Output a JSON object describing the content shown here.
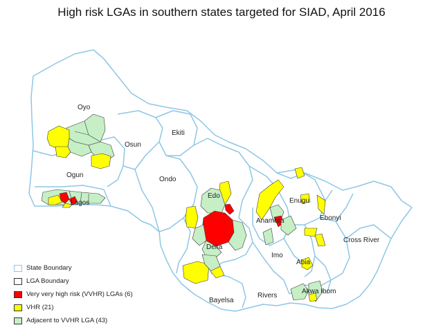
{
  "title": "High risk LGAs in southern states targeted for SIAD, April 2016",
  "colors": {
    "state_boundary": "#8ec6e6",
    "lga_boundary": "#3a3a3a",
    "vvhr": "#ff0000",
    "vhr": "#ffff00",
    "adjacent": "#c6efc6"
  },
  "states": {
    "oyo": "Oyo",
    "osun": "Osun",
    "ekiti": "Ekiti",
    "ogun": "Ogun",
    "ondo": "Ondo",
    "lagos": "Lagos",
    "edo": "Edo",
    "delta": "Delta",
    "enugu": "Enugu",
    "anambra": "Anambra",
    "ebonyi": "Ebonyi",
    "cross_river": "Cross River",
    "imo": "Imo",
    "abia": "Abia",
    "bayelsa": "Bayelsa",
    "rivers": "Rivers",
    "akwa_ibom": "Akwa Ibom"
  },
  "legend": [
    {
      "label": "State Boundary",
      "color": "#ffffff",
      "border": "#8ec6e6"
    },
    {
      "label": "LGA Boundary",
      "color": "#ffffff",
      "border": "#333333"
    },
    {
      "label": "Very very high risk (VVHR) LGAs (6)",
      "color": "#ff0000",
      "border": "#333333"
    },
    {
      "label": "VHR (21)",
      "color": "#ffff00",
      "border": "#333333"
    },
    {
      "label": "Adjacent to VVHR LGA (43)",
      "color": "#c6efc6",
      "border": "#333333"
    }
  ]
}
